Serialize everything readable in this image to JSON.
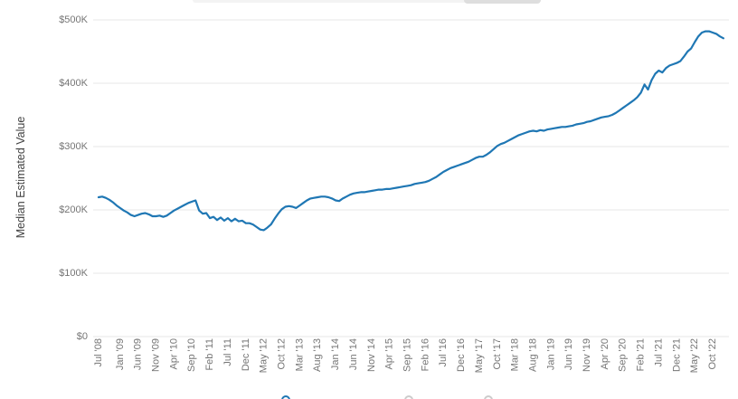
{
  "page": {
    "background": "#ffffff",
    "accent_color": "#1F77B4",
    "gridline_color": "#e7e7e7",
    "tick_text_color": "#757575",
    "axis_title_color": "#424242"
  },
  "partial_elements": {
    "top_bar_note": "bottom sliver of a control bar cut off by top edge",
    "legend_note": "legend markers cut off by bottom edge",
    "legend_markers": [
      {
        "name": "series-marker",
        "color": "#1F77B4"
      },
      {
        "name": "other-marker-1",
        "color": "#cccccc"
      },
      {
        "name": "other-marker-2",
        "color": "#cccccc"
      }
    ]
  },
  "chart_data": {
    "type": "line",
    "title": "",
    "ylabel": "Median Estimated Value",
    "xlabel": "",
    "grid": "horizontal-only",
    "legend_position": "bottom (cut off)",
    "ylim_usd": [
      0,
      500000
    ],
    "y_tick_labels": [
      "$0",
      "$100K",
      "$200K",
      "$300K",
      "$400K",
      "$500K"
    ],
    "x_tick_labels": [
      "Jul '08",
      "Jan '09",
      "Jun '09",
      "Nov '09",
      "Apr '10",
      "Sep '10",
      "Feb '11",
      "Jul '11",
      "Dec '11",
      "May '12",
      "Oct '12",
      "Mar '13",
      "Aug '13",
      "Jan '14",
      "Jun '14",
      "Nov '14",
      "Apr '15",
      "Sep '15",
      "Feb '16",
      "Jul '16",
      "Dec '16",
      "May '17",
      "Oct '17",
      "Mar '18",
      "Aug '18",
      "Jan '19",
      "Jun '19",
      "Nov '19",
      "Apr '20",
      "Sep '20",
      "Feb '21",
      "Jul '21",
      "Dec '21",
      "May '22",
      "Oct '22"
    ],
    "series": [
      {
        "name": "Median Estimated Value",
        "color": "#1F77B4",
        "start_month": "2008-07",
        "interval_months": 1,
        "unit": "USD thousands",
        "values": [
          220,
          221,
          219,
          216,
          212,
          207,
          203,
          199,
          196,
          192,
          190,
          192,
          194,
          195,
          193,
          190,
          190,
          191,
          189,
          191,
          195,
          199,
          202,
          205,
          208,
          211,
          213,
          215,
          199,
          194,
          195,
          187,
          189,
          184,
          188,
          183,
          187,
          182,
          186,
          182,
          183,
          179,
          179,
          177,
          173,
          169,
          168,
          172,
          177,
          186,
          194,
          201,
          205,
          206,
          205,
          203,
          207,
          211,
          215,
          218,
          219,
          220,
          221,
          221,
          220,
          218,
          215,
          214,
          218,
          221,
          224,
          226,
          227,
          228,
          228,
          229,
          230,
          231,
          232,
          232,
          233,
          233,
          234,
          235,
          236,
          237,
          238,
          239,
          241,
          242,
          243,
          244,
          246,
          249,
          252,
          256,
          260,
          263,
          266,
          268,
          270,
          272,
          274,
          276,
          279,
          282,
          284,
          284,
          287,
          291,
          296,
          301,
          304,
          306,
          309,
          312,
          315,
          318,
          320,
          322,
          324,
          325,
          324,
          326,
          325,
          327,
          328,
          329,
          330,
          331,
          331,
          332,
          333,
          335,
          336,
          337,
          339,
          340,
          342,
          344,
          346,
          347,
          348,
          350,
          353,
          357,
          361,
          365,
          369,
          373,
          378,
          385,
          398,
          390,
          405,
          415,
          420,
          417,
          424,
          428,
          430,
          432,
          435,
          442,
          450,
          455,
          465,
          474,
          480,
          482,
          482,
          480,
          478,
          474,
          471
        ]
      }
    ]
  }
}
